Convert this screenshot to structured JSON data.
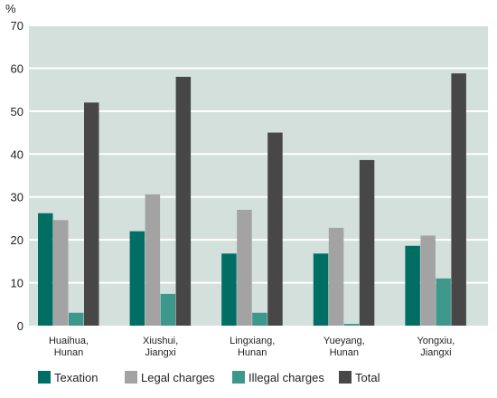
{
  "chart_data": {
    "type": "bar",
    "y_unit": "%",
    "ylim": [
      0,
      70
    ],
    "yticks": [
      "0",
      "10",
      "20",
      "30",
      "40",
      "50",
      "60",
      "70"
    ],
    "grid": true,
    "legend_position": "bottom",
    "categories": [
      [
        "Huaihua,",
        "Hunan"
      ],
      [
        "Xiushui,",
        "Jiangxi"
      ],
      [
        "Lingxiang,",
        "Hunan"
      ],
      [
        "Yueyang,",
        "Hunan"
      ],
      [
        "Yongxiu,",
        "Jiangxi"
      ]
    ],
    "series": [
      {
        "name": "Texation",
        "color": "#006e63",
        "values": [
          26.2,
          22.0,
          16.8,
          16.8,
          18.6
        ]
      },
      {
        "name": "Legal charges",
        "color": "#a3a3a3",
        "values": [
          24.6,
          30.6,
          27.0,
          22.8,
          21.0
        ]
      },
      {
        "name": "Illegal charges",
        "color": "#3d978a",
        "values": [
          3.0,
          7.4,
          3.0,
          0.4,
          11.0
        ]
      },
      {
        "name": "Total",
        "color": "#474747",
        "values": [
          52.0,
          58.0,
          45.0,
          38.6,
          58.8
        ]
      }
    ],
    "plot_background": "#d3e0dc",
    "grid_color": "#ffffff"
  }
}
